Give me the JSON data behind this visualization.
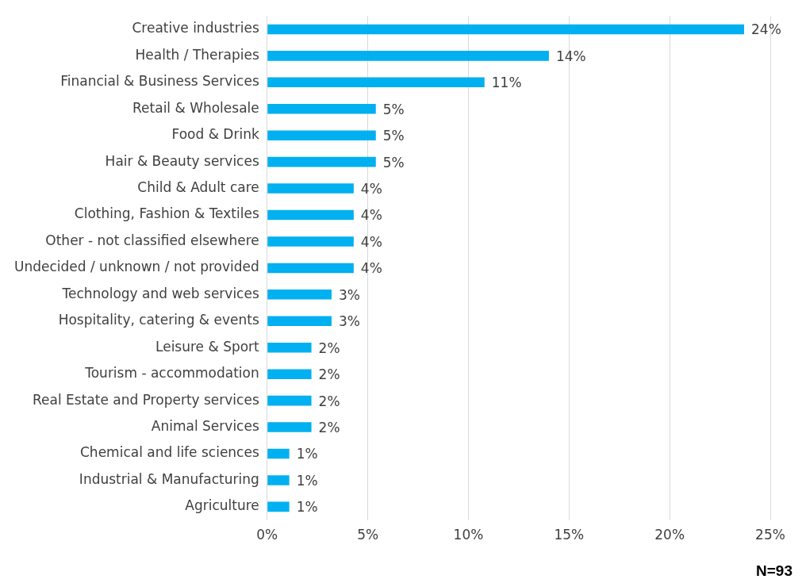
{
  "chart_data": {
    "type": "bar",
    "orientation": "horizontal",
    "categories": [
      "Creative industries",
      "Health / Therapies",
      "Financial & Business Services",
      "Retail & Wholesale",
      "Food & Drink",
      "Hair & Beauty services",
      "Child & Adult care",
      "Clothing, Fashion & Textiles",
      "Other - not classified elsewhere",
      "Undecided / unknown / not provided",
      "Technology and web services",
      "Hospitality, catering & events",
      "Leisure & Sport",
      "Tourism - accommodation",
      "Real Estate and Property services",
      "Animal Services",
      "Chemical and life sciences",
      "Industrial & Manufacturing",
      "Agriculture"
    ],
    "values": [
      23.7,
      14,
      10.8,
      5.4,
      5.4,
      5.4,
      4.3,
      4.3,
      4.3,
      4.3,
      3.2,
      3.2,
      2.2,
      2.2,
      2.2,
      2.2,
      1.1,
      1.1,
      1.1
    ],
    "value_labels": [
      "24%",
      "14%",
      "11%",
      "5%",
      "5%",
      "5%",
      "4%",
      "4%",
      "4%",
      "4%",
      "3%",
      "3%",
      "2%",
      "2%",
      "2%",
      "2%",
      "1%",
      "1%",
      "1%"
    ],
    "color": "#00b0f0",
    "xlim": [
      0,
      25
    ],
    "xticks": [
      {
        "value": 0,
        "label": "0%"
      },
      {
        "value": 5,
        "label": "5%"
      },
      {
        "value": 10,
        "label": "10%"
      },
      {
        "value": 15,
        "label": "15%"
      },
      {
        "value": 20,
        "label": "20%"
      },
      {
        "value": 25,
        "label": "25%"
      }
    ],
    "grid": "x",
    "annotations": [
      "N=93"
    ]
  }
}
